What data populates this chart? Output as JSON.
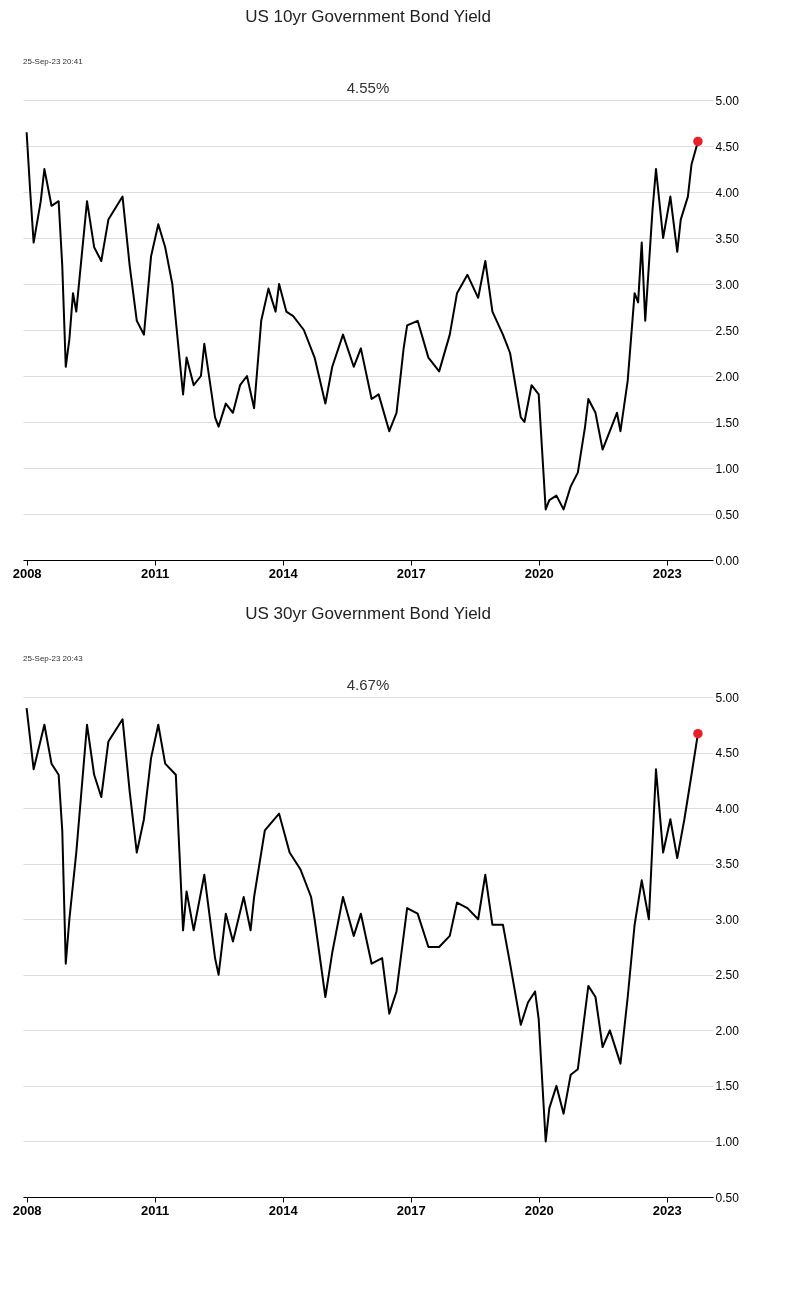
{
  "chart_data": [
    {
      "type": "line",
      "title": "US 10yr Government Bond Yield",
      "annotations": [
        "25-Sep-23 20:41",
        "4.55%"
      ],
      "series": [
        {
          "color": "#000000",
          "x": [
            "2008-01",
            "2008-02",
            "2008-03",
            "2008-05",
            "2008-06",
            "2008-08",
            "2008-10",
            "2008-11",
            "2008-12",
            "2009-01",
            "2009-02",
            "2009-03",
            "2009-06",
            "2009-08",
            "2009-10",
            "2009-12",
            "2010-04",
            "2010-06",
            "2010-08",
            "2010-10",
            "2010-12",
            "2011-02",
            "2011-04",
            "2011-06",
            "2011-08",
            "2011-09",
            "2011-10",
            "2011-12",
            "2012-02",
            "2012-03",
            "2012-06",
            "2012-07",
            "2012-09",
            "2012-11",
            "2013-01",
            "2013-03",
            "2013-05",
            "2013-07",
            "2013-09",
            "2013-11",
            "2013-12",
            "2014-02",
            "2014-04",
            "2014-07",
            "2014-10",
            "2015-01",
            "2015-03",
            "2015-06",
            "2015-09",
            "2015-11",
            "2016-02",
            "2016-04",
            "2016-07",
            "2016-09",
            "2016-11",
            "2016-12",
            "2017-03",
            "2017-06",
            "2017-09",
            "2017-12",
            "2018-02",
            "2018-05",
            "2018-08",
            "2018-10",
            "2018-12",
            "2019-03",
            "2019-05",
            "2019-08",
            "2019-09",
            "2019-11",
            "2020-01",
            "2020-03",
            "2020-04",
            "2020-06",
            "2020-08",
            "2020-10",
            "2020-12",
            "2021-02",
            "2021-03",
            "2021-05",
            "2021-07",
            "2021-09",
            "2021-11",
            "2021-12",
            "2022-02",
            "2022-04",
            "2022-05",
            "2022-06",
            "2022-07",
            "2022-09",
            "2022-10",
            "2022-12",
            "2023-02",
            "2023-04",
            "2023-05",
            "2023-07",
            "2023-08",
            "2023-09-25"
          ],
          "values": [
            4.65,
            4.0,
            3.45,
            3.9,
            4.25,
            3.85,
            3.9,
            3.2,
            2.1,
            2.4,
            2.9,
            2.7,
            3.9,
            3.4,
            3.25,
            3.7,
            3.95,
            3.2,
            2.6,
            2.45,
            3.3,
            3.65,
            3.4,
            3.0,
            2.2,
            1.8,
            2.2,
            1.9,
            2.0,
            2.35,
            1.55,
            1.45,
            1.7,
            1.6,
            1.9,
            2.0,
            1.65,
            2.6,
            2.95,
            2.7,
            3.0,
            2.7,
            2.65,
            2.5,
            2.2,
            1.7,
            2.1,
            2.45,
            2.1,
            2.3,
            1.75,
            1.8,
            1.4,
            1.6,
            2.3,
            2.55,
            2.6,
            2.2,
            2.05,
            2.45,
            2.9,
            3.1,
            2.85,
            3.25,
            2.7,
            2.45,
            2.25,
            1.55,
            1.5,
            1.9,
            1.8,
            0.55,
            0.65,
            0.7,
            0.55,
            0.8,
            0.95,
            1.45,
            1.75,
            1.6,
            1.2,
            1.4,
            1.6,
            1.4,
            1.95,
            2.9,
            2.8,
            3.45,
            2.6,
            3.8,
            4.25,
            3.5,
            3.95,
            3.35,
            3.7,
            3.95,
            4.3,
            4.55
          ]
        },
        {
          "type": "scatter",
          "color": "#e8202a",
          "marker": "circle",
          "x": [
            "2023-09-25"
          ],
          "values": [
            4.55
          ]
        }
      ],
      "xlim": [
        "2007-12-01",
        "2024-02-01"
      ],
      "xticks": [
        {
          "value": "2008-01-01",
          "label": "2008"
        },
        {
          "value": "2011-01-01",
          "label": "2011"
        },
        {
          "value": "2014-01-01",
          "label": "2014"
        },
        {
          "value": "2017-01-01",
          "label": "2017"
        },
        {
          "value": "2020-01-01",
          "label": "2020"
        },
        {
          "value": "2023-01-01",
          "label": "2023"
        }
      ],
      "ylim": [
        0,
        5
      ],
      "yticks": [
        {
          "value": 0,
          "label": "0.00"
        },
        {
          "value": 0.5,
          "label": "0.50"
        },
        {
          "value": 1,
          "label": "1.00"
        },
        {
          "value": 1.5,
          "label": "1.50"
        },
        {
          "value": 2,
          "label": "2.00"
        },
        {
          "value": 2.5,
          "label": "2.50"
        },
        {
          "value": 3,
          "label": "3.00"
        },
        {
          "value": 3.5,
          "label": "3.50"
        },
        {
          "value": 4,
          "label": "4.00"
        },
        {
          "value": 4.5,
          "label": "4.50"
        },
        {
          "value": 5,
          "label": "5.00"
        }
      ],
      "grid": "y"
    },
    {
      "type": "line",
      "title": "US 30yr Government Bond Yield",
      "annotations": [
        "25-Sep-23 20:43",
        "4.67%"
      ],
      "series": [
        {
          "color": "#000000",
          "x": [
            "2008-01",
            "2008-03",
            "2008-06",
            "2008-08",
            "2008-10",
            "2008-11",
            "2008-12",
            "2009-01",
            "2009-03",
            "2009-06",
            "2009-08",
            "2009-10",
            "2009-12",
            "2010-04",
            "2010-06",
            "2010-08",
            "2010-10",
            "2010-12",
            "2011-02",
            "2011-04",
            "2011-07",
            "2011-08",
            "2011-09",
            "2011-10",
            "2011-12",
            "2012-03",
            "2012-06",
            "2012-07",
            "2012-09",
            "2012-11",
            "2013-02",
            "2013-04",
            "2013-05",
            "2013-08",
            "2013-12",
            "2014-03",
            "2014-06",
            "2014-09",
            "2014-10",
            "2015-01",
            "2015-03",
            "2015-06",
            "2015-09",
            "2015-11",
            "2016-02",
            "2016-05",
            "2016-07",
            "2016-09",
            "2016-12",
            "2017-03",
            "2017-06",
            "2017-09",
            "2017-12",
            "2018-02",
            "2018-05",
            "2018-08",
            "2018-10",
            "2018-12",
            "2019-03",
            "2019-05",
            "2019-08",
            "2019-10",
            "2019-12",
            "2020-01",
            "2020-03",
            "2020-04",
            "2020-06",
            "2020-08",
            "2020-10",
            "2020-12",
            "2021-03",
            "2021-05",
            "2021-07",
            "2021-09",
            "2021-12",
            "2022-02",
            "2022-04",
            "2022-06",
            "2022-08",
            "2022-10",
            "2022-12",
            "2023-02",
            "2023-04",
            "2023-06",
            "2023-08",
            "2023-09-25"
          ],
          "values": [
            4.9,
            4.35,
            4.75,
            4.4,
            4.3,
            3.8,
            2.6,
            3.0,
            3.6,
            4.75,
            4.3,
            4.1,
            4.6,
            4.8,
            4.15,
            3.6,
            3.9,
            4.45,
            4.75,
            4.4,
            4.3,
            3.6,
            2.9,
            3.25,
            2.9,
            3.4,
            2.65,
            2.5,
            3.05,
            2.8,
            3.2,
            2.9,
            3.2,
            3.8,
            3.95,
            3.6,
            3.45,
            3.2,
            3.0,
            2.3,
            2.7,
            3.2,
            2.85,
            3.05,
            2.6,
            2.65,
            2.15,
            2.35,
            3.1,
            3.05,
            2.75,
            2.75,
            2.85,
            3.15,
            3.1,
            3.0,
            3.4,
            2.95,
            2.95,
            2.6,
            2.05,
            2.25,
            2.35,
            2.1,
            1.0,
            1.3,
            1.5,
            1.25,
            1.6,
            1.65,
            2.4,
            2.3,
            1.85,
            2.0,
            1.7,
            2.3,
            2.95,
            3.35,
            3.0,
            4.35,
            3.6,
            3.9,
            3.55,
            3.9,
            4.3,
            4.67
          ]
        },
        {
          "type": "scatter",
          "color": "#e8202a",
          "marker": "circle",
          "x": [
            "2023-09-25"
          ],
          "values": [
            4.67
          ]
        }
      ],
      "xlim": [
        "2007-12-01",
        "2024-02-01"
      ],
      "xticks": [
        {
          "value": "2008-01-01",
          "label": "2008"
        },
        {
          "value": "2011-01-01",
          "label": "2011"
        },
        {
          "value": "2014-01-01",
          "label": "2014"
        },
        {
          "value": "2017-01-01",
          "label": "2017"
        },
        {
          "value": "2020-01-01",
          "label": "2020"
        },
        {
          "value": "2023-01-01",
          "label": "2023"
        }
      ],
      "ylim": [
        0.5,
        5
      ],
      "yticks": [
        {
          "value": 0.5,
          "label": "0.50"
        },
        {
          "value": 1,
          "label": "1.00"
        },
        {
          "value": 1.5,
          "label": "1.50"
        },
        {
          "value": 2,
          "label": "2.00"
        },
        {
          "value": 2.5,
          "label": "2.50"
        },
        {
          "value": 3,
          "label": "3.00"
        },
        {
          "value": 3.5,
          "label": "3.50"
        },
        {
          "value": 4,
          "label": "4.00"
        },
        {
          "value": 4.5,
          "label": "4.50"
        },
        {
          "value": 5,
          "label": "5.00"
        }
      ],
      "grid": "y"
    }
  ]
}
